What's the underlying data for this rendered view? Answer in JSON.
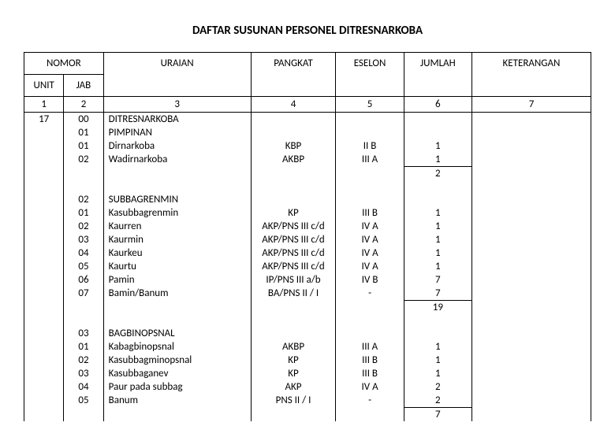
{
  "title": "DAFTAR SUSUNAN PERSONEL DITRESNARKOBA",
  "headers": {
    "nomor": "NOMOR",
    "unit": "UNIT",
    "jab": "JAB",
    "uraian": "URAIAN",
    "pangkat": "PANGKAT",
    "eselon": "ESELON",
    "jumlah": "JUMLAH",
    "keterangan": "KETERANGAN"
  },
  "colnums": {
    "unit": "1",
    "jab": "2",
    "uraian": "3",
    "pangkat": "4",
    "eselon": "5",
    "jumlah": "6",
    "ket": "7"
  },
  "rows": [
    {
      "unit": "17",
      "jab": "00",
      "uraian": "DITRESNARKOBA",
      "pangkat": "",
      "eselon": "",
      "jumlah": ""
    },
    {
      "unit": "",
      "jab": "01",
      "uraian": "PIMPINAN",
      "pangkat": "",
      "eselon": "",
      "jumlah": ""
    },
    {
      "unit": "",
      "jab": "01",
      "uraian": "Dirnarkoba",
      "pangkat": "KBP",
      "eselon": "II B",
      "jumlah": "1"
    },
    {
      "unit": "",
      "jab": "02",
      "uraian": "Wadirnarkoba",
      "pangkat": "AKBP",
      "eselon": "III A",
      "jumlah": "1"
    },
    {
      "type": "sum",
      "jumlah": "2"
    },
    {
      "type": "spacer"
    },
    {
      "unit": "",
      "jab": "02",
      "uraian": "SUBBAGRENMIN",
      "pangkat": "",
      "eselon": "",
      "jumlah": ""
    },
    {
      "unit": "",
      "jab": "01",
      "uraian": "Kasubbagrenmin",
      "pangkat": "KP",
      "eselon": "III B",
      "jumlah": "1"
    },
    {
      "unit": "",
      "jab": "02",
      "uraian": "Kaurren",
      "pangkat": "AKP/PNS III c/d",
      "eselon": "IV A",
      "jumlah": "1"
    },
    {
      "unit": "",
      "jab": "03",
      "uraian": "Kaurmin",
      "pangkat": "AKP/PNS III c/d",
      "eselon": "IV A",
      "jumlah": "1"
    },
    {
      "unit": "",
      "jab": "04",
      "uraian": "Kaurkeu",
      "pangkat": "AKP/PNS III c/d",
      "eselon": "IV A",
      "jumlah": "1"
    },
    {
      "unit": "",
      "jab": "05",
      "uraian": "Kaurtu",
      "pangkat": "AKP/PNS III c/d",
      "eselon": "IV A",
      "jumlah": "1"
    },
    {
      "unit": "",
      "jab": "06",
      "uraian": "Pamin",
      "pangkat": "IP/PNS III a/b",
      "eselon": "IV B",
      "jumlah": "7"
    },
    {
      "unit": "",
      "jab": "07",
      "uraian": "Bamin/Banum",
      "pangkat": "BA/PNS II / I",
      "eselon": "-",
      "jumlah": "7"
    },
    {
      "type": "sum",
      "jumlah": "19"
    },
    {
      "type": "spacer"
    },
    {
      "unit": "",
      "jab": "03",
      "uraian": "BAGBINOPSNAL",
      "pangkat": "",
      "eselon": "",
      "jumlah": ""
    },
    {
      "unit": "",
      "jab": "01",
      "uraian": "Kabagbinopsnal",
      "pangkat": "AKBP",
      "eselon": "III A",
      "jumlah": "1"
    },
    {
      "unit": "",
      "jab": "02",
      "uraian": "Kasubbagminopsnal",
      "pangkat": "KP",
      "eselon": "III B",
      "jumlah": "1"
    },
    {
      "unit": "",
      "jab": "03",
      "uraian": "Kasubbaganev",
      "pangkat": "KP",
      "eselon": "III B",
      "jumlah": "1"
    },
    {
      "unit": "",
      "jab": "04",
      "uraian": "Paur pada subbag",
      "pangkat": "AKP",
      "eselon": "IV A",
      "jumlah": "2"
    },
    {
      "unit": "",
      "jab": "05",
      "uraian": "Banum",
      "pangkat": "PNS II / I",
      "eselon": "-",
      "jumlah": "2"
    },
    {
      "type": "sum",
      "jumlah": "7"
    }
  ]
}
